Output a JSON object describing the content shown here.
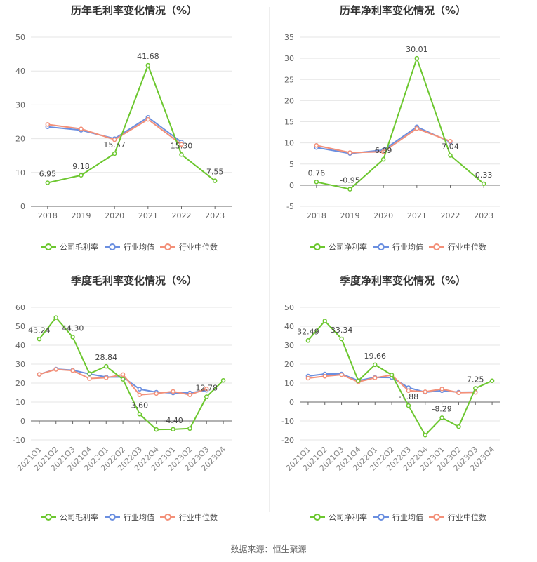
{
  "source": "数据来源：恒生聚源",
  "colors": {
    "company": "#6cc72f",
    "avg": "#6b8fe0",
    "median": "#f39079",
    "grid": "#e6e6e6",
    "axis": "#555555"
  },
  "chart_data": [
    {
      "type": "line",
      "title": "历年毛利率变化情况（%）",
      "categories": [
        "2018",
        "2019",
        "2020",
        "2021",
        "2022",
        "2023"
      ],
      "ylim": [
        0,
        50
      ],
      "yticks": [
        0,
        10,
        20,
        30,
        40,
        50
      ],
      "grid": true,
      "legend": "bottom",
      "series": [
        {
          "name": "公司毛利率",
          "values": [
            6.95,
            9.18,
            15.57,
            41.68,
            15.3,
            7.55
          ],
          "labels": [
            "6.95",
            "9.18",
            "15.57",
            "41.68",
            "15.30",
            "7.55"
          ]
        },
        {
          "name": "行业均值",
          "values": [
            23.5,
            22.5,
            20.0,
            26.3,
            19.0,
            null
          ]
        },
        {
          "name": "行业中位数",
          "values": [
            24.2,
            22.9,
            19.7,
            25.7,
            18.3,
            null
          ]
        }
      ]
    },
    {
      "type": "line",
      "title": "历年净利率变化情况（%）",
      "categories": [
        "2018",
        "2019",
        "2020",
        "2021",
        "2022",
        "2023"
      ],
      "ylim": [
        -5,
        35
      ],
      "yticks": [
        -5,
        0,
        5,
        10,
        15,
        20,
        25,
        30,
        35
      ],
      "grid": true,
      "legend": "bottom",
      "series": [
        {
          "name": "公司净利率",
          "values": [
            0.76,
            -0.95,
            6.09,
            30.01,
            7.04,
            0.33
          ],
          "labels": [
            "0.76",
            "-0.95",
            "6.09",
            "30.01",
            "7.04",
            "0.33"
          ]
        },
        {
          "name": "行业均值",
          "values": [
            8.9,
            7.5,
            8.3,
            13.8,
            10.2,
            null
          ]
        },
        {
          "name": "行业中位数",
          "values": [
            9.4,
            7.7,
            7.9,
            13.4,
            10.4,
            null
          ]
        }
      ]
    },
    {
      "type": "line",
      "title": "季度毛利率变化情况（%）",
      "categories": [
        "2021Q1",
        "2021Q2",
        "2021Q3",
        "2021Q4",
        "2022Q1",
        "2022Q2",
        "2022Q3",
        "2022Q4",
        "2023Q1",
        "2023Q2",
        "2023Q3",
        "2023Q4"
      ],
      "ylim": [
        -10,
        60
      ],
      "yticks": [
        -10,
        0,
        10,
        20,
        30,
        40,
        50,
        60
      ],
      "grid": true,
      "legend": "bottom",
      "series": [
        {
          "name": "公司毛利率",
          "values": [
            43.24,
            54.6,
            44.3,
            25.0,
            28.84,
            22.0,
            3.6,
            -4.5,
            -4.4,
            -4.0,
            12.78,
            21.4
          ],
          "labels": [
            "43.24",
            "",
            "44.30",
            "",
            "28.84",
            "",
            "3.60",
            "",
            "-4.40",
            "",
            "12.78",
            ""
          ]
        },
        {
          "name": "行业均值",
          "values": [
            24.6,
            27.4,
            26.8,
            24.8,
            23.2,
            23.2,
            16.8,
            15.2,
            14.8,
            14.8,
            16.2,
            null
          ]
        },
        {
          "name": "行业中位数",
          "values": [
            24.6,
            27.2,
            26.6,
            22.4,
            22.8,
            24.5,
            13.8,
            14.5,
            15.6,
            13.8,
            17.0,
            null
          ]
        }
      ]
    },
    {
      "type": "line",
      "title": "季度净利率变化情况（%）",
      "categories": [
        "2021Q1",
        "2021Q2",
        "2021Q3",
        "2021Q4",
        "2022Q1",
        "2022Q2",
        "2022Q3",
        "2022Q4",
        "2023Q1",
        "2023Q2",
        "2023Q3",
        "2023Q4"
      ],
      "ylim": [
        -20,
        50
      ],
      "yticks": [
        -20,
        -10,
        0,
        10,
        20,
        30,
        40,
        50
      ],
      "grid": true,
      "legend": "bottom",
      "series": [
        {
          "name": "公司净利率",
          "values": [
            32.49,
            42.8,
            33.34,
            11.2,
            19.66,
            14.3,
            -1.88,
            -17.5,
            -8.29,
            -13.0,
            7.25,
            11.2
          ],
          "labels": [
            "32.49",
            "",
            "33.34",
            "",
            "19.66",
            "",
            "-1.88",
            "",
            "-8.29",
            "",
            "7.25",
            ""
          ]
        },
        {
          "name": "行业均值",
          "values": [
            13.7,
            14.8,
            14.8,
            11.3,
            13.0,
            12.9,
            7.6,
            5.2,
            6.0,
            5.2,
            5.3,
            null
          ]
        },
        {
          "name": "行业中位数",
          "values": [
            12.6,
            13.6,
            14.4,
            10.6,
            12.8,
            14.2,
            6.0,
            5.4,
            6.9,
            4.9,
            5.1,
            null
          ]
        }
      ]
    }
  ]
}
